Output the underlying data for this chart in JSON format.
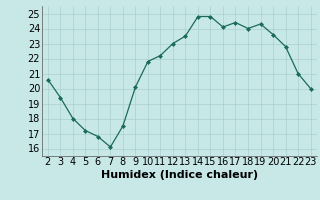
{
  "x": [
    2,
    3,
    4,
    5,
    6,
    7,
    8,
    9,
    10,
    11,
    12,
    13,
    14,
    15,
    16,
    17,
    18,
    19,
    20,
    21,
    22,
    23
  ],
  "y": [
    20.6,
    19.4,
    18.0,
    17.2,
    16.8,
    16.1,
    17.5,
    20.1,
    21.8,
    22.2,
    23.0,
    23.5,
    24.8,
    24.8,
    24.1,
    24.4,
    24.0,
    24.3,
    23.6,
    22.8,
    21.0,
    20.0
  ],
  "line_color": "#1a6b5a",
  "marker_color": "#1a6b5a",
  "bg_color": "#c8e8e8",
  "grid_color": "#aacfcf",
  "xlabel": "Humidex (Indice chaleur)",
  "xlim": [
    1.5,
    23.5
  ],
  "ylim": [
    15.5,
    25.5
  ],
  "yticks": [
    16,
    17,
    18,
    19,
    20,
    21,
    22,
    23,
    24,
    25
  ],
  "xticks": [
    2,
    3,
    4,
    5,
    6,
    7,
    8,
    9,
    10,
    11,
    12,
    13,
    14,
    15,
    16,
    17,
    18,
    19,
    20,
    21,
    22,
    23
  ],
  "label_fontsize": 8,
  "tick_fontsize": 7
}
